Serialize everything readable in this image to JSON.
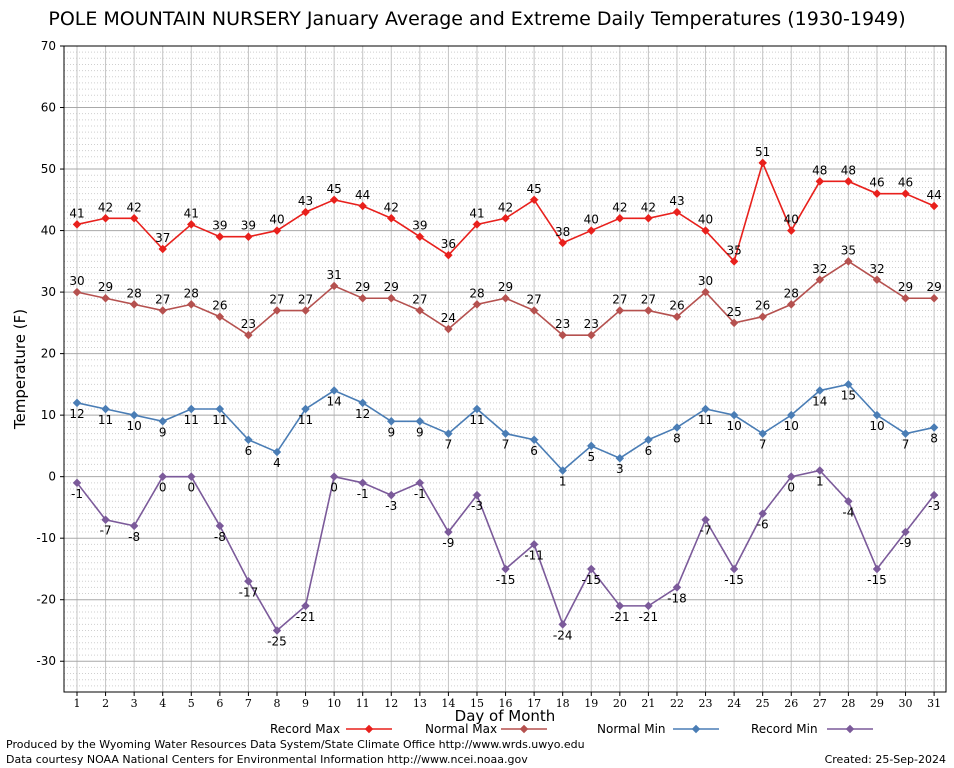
{
  "title": "POLE MOUNTAIN NURSERY January Average and Extreme Daily Temperatures (1930-1949)",
  "footer": {
    "produced_by": "Produced by the Wyoming Water Resources Data System/State Climate Office http://www.wrds.uwyo.edu",
    "data_courtesy": "Data courtesy NOAA National Centers for Environmental Information http://www.ncei.noaa.gov",
    "created": "Created:  25-Sep-2024"
  },
  "chart_data": {
    "type": "line",
    "title": "POLE MOUNTAIN NURSERY January Average and Extreme Daily Temperatures (1930-1949)",
    "xlabel": "Day of Month",
    "ylabel": "Temperature (F)",
    "x": [
      1,
      2,
      3,
      4,
      5,
      6,
      7,
      8,
      9,
      10,
      11,
      12,
      13,
      14,
      15,
      16,
      17,
      18,
      19,
      20,
      21,
      22,
      23,
      24,
      25,
      26,
      27,
      28,
      29,
      30,
      31
    ],
    "xlim": [
      1,
      31
    ],
    "ylim": [
      -35,
      70
    ],
    "yticks": [
      -30,
      -20,
      -10,
      0,
      10,
      20,
      30,
      40,
      50,
      60,
      70
    ],
    "grid": true,
    "legend_position": "bottom",
    "series": [
      {
        "name": "Record Max",
        "color": "#e8201c",
        "values": [
          41,
          42,
          42,
          37,
          41,
          39,
          39,
          40,
          43,
          45,
          44,
          42,
          39,
          36,
          41,
          42,
          45,
          38,
          40,
          42,
          42,
          43,
          40,
          35,
          51,
          40,
          48,
          48,
          46,
          46,
          44
        ]
      },
      {
        "name": "Normal Max",
        "color": "#b5514f",
        "values": [
          30,
          29,
          28,
          27,
          28,
          26,
          23,
          27,
          27,
          31,
          29,
          29,
          27,
          24,
          28,
          29,
          27,
          23,
          23,
          27,
          27,
          26,
          30,
          25,
          26,
          28,
          32,
          35,
          32,
          29,
          29
        ]
      },
      {
        "name": "Normal Min",
        "color": "#4a7db5",
        "values": [
          12,
          11,
          10,
          9,
          11,
          11,
          6,
          4,
          11,
          14,
          12,
          9,
          9,
          7,
          11,
          7,
          6,
          1,
          5,
          3,
          6,
          8,
          11,
          10,
          7,
          10,
          14,
          15,
          10,
          7,
          8
        ]
      },
      {
        "name": "Record Min",
        "color": "#7b5a9a",
        "values": [
          -1,
          -7,
          -8,
          0,
          0,
          -8,
          -17,
          -25,
          -21,
          0,
          -1,
          -3,
          -1,
          -9,
          -3,
          -15,
          -11,
          -24,
          -15,
          -21,
          -21,
          -18,
          -7,
          -15,
          -6,
          0,
          1,
          -4,
          -15,
          -9,
          -3
        ]
      }
    ]
  }
}
